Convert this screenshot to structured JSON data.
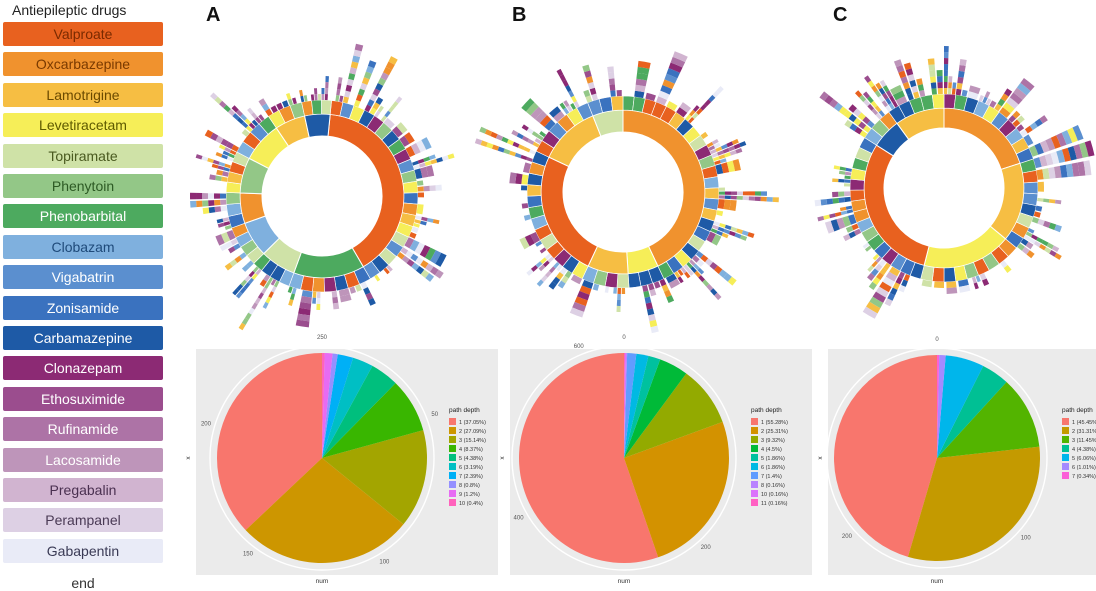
{
  "legend": {
    "title": "Antiepileptic drugs",
    "end_label": "end",
    "items": [
      {
        "name": "Valproate",
        "color": "#e8611f",
        "text": "#7a2a00"
      },
      {
        "name": "Oxcarbazepine",
        "color": "#f0922e",
        "text": "#7a3a00"
      },
      {
        "name": "Lamotrigine",
        "color": "#f6be43",
        "text": "#6b4a00"
      },
      {
        "name": "Levetiracetam",
        "color": "#f6ee58",
        "text": "#5e5a00"
      },
      {
        "name": "Topiramate",
        "color": "#cfe2a7",
        "text": "#4a5a20"
      },
      {
        "name": "Phenytoin",
        "color": "#93c787",
        "text": "#2d5a24"
      },
      {
        "name": "Phenobarbital",
        "color": "#4daa5f",
        "text": "#ffffff"
      },
      {
        "name": "Clobazam",
        "color": "#7fb0de",
        "text": "#1f4a7a"
      },
      {
        "name": "Vigabatrin",
        "color": "#5b8fcf",
        "text": "#ffffff"
      },
      {
        "name": "Zonisamide",
        "color": "#3a72bf",
        "text": "#ffffff"
      },
      {
        "name": "Carbamazepine",
        "color": "#1e5aa6",
        "text": "#ffffff"
      },
      {
        "name": "Clonazepam",
        "color": "#8c2a74",
        "text": "#ffffff"
      },
      {
        "name": "Ethosuximide",
        "color": "#9b4d8e",
        "text": "#ffffff"
      },
      {
        "name": "Rufinamide",
        "color": "#ad73a6",
        "text": "#ffffff"
      },
      {
        "name": "Lacosamide",
        "color": "#be95ba",
        "text": "#ffffff"
      },
      {
        "name": "Pregabalin",
        "color": "#d1b4d0",
        "text": "#4a3050"
      },
      {
        "name": "Perampanel",
        "color": "#ddd0e4",
        "text": "#4a3a55"
      },
      {
        "name": "Gabapentin",
        "color": "#e9ebf7",
        "text": "#3a3a55"
      }
    ]
  },
  "panels": [
    "A",
    "B",
    "C"
  ],
  "chart_data": [
    {
      "type": "pie",
      "panel": "A",
      "xlabel": "num",
      "ylabel": "x",
      "legend_title": "path depth",
      "ticks": [
        "250",
        "50",
        "100",
        "150",
        "200"
      ],
      "slices": [
        {
          "label": "1 (37.05%)",
          "value": 37.05,
          "color": "#f8766d"
        },
        {
          "label": "2 (27.09%)",
          "value": 27.09,
          "color": "#cd9600"
        },
        {
          "label": "3 (15.14%)",
          "value": 15.14,
          "color": "#a3a500"
        },
        {
          "label": "4 (8.37%)",
          "value": 8.37,
          "color": "#39b600"
        },
        {
          "label": "5 (4.38%)",
          "value": 4.38,
          "color": "#00bf7d"
        },
        {
          "label": "6 (3.19%)",
          "value": 3.19,
          "color": "#00bfc4"
        },
        {
          "label": "7 (2.39%)",
          "value": 2.39,
          "color": "#00b0f6"
        },
        {
          "label": "8 (0.8%)",
          "value": 0.8,
          "color": "#9590ff"
        },
        {
          "label": "9 (1.2%)",
          "value": 1.2,
          "color": "#e76bf3"
        },
        {
          "label": "10 (0.4%)",
          "value": 0.4,
          "color": "#ff62bc"
        }
      ]
    },
    {
      "type": "pie",
      "panel": "B",
      "xlabel": "num",
      "ylabel": "x",
      "legend_title": "path depth",
      "ticks": [
        "0",
        "600",
        "200",
        "400"
      ],
      "slices": [
        {
          "label": "1 (55.28%)",
          "value": 55.28,
          "color": "#f8766d"
        },
        {
          "label": "2 (25.31%)",
          "value": 25.31,
          "color": "#d39200"
        },
        {
          "label": "3 (9.32%)",
          "value": 9.32,
          "color": "#93aa00"
        },
        {
          "label": "4 (4.5%)",
          "value": 4.5,
          "color": "#00ba38"
        },
        {
          "label": "5 (1.86%)",
          "value": 1.86,
          "color": "#00c19f"
        },
        {
          "label": "6 (1.86%)",
          "value": 1.86,
          "color": "#00b9e3"
        },
        {
          "label": "7 (1.4%)",
          "value": 1.4,
          "color": "#619cff"
        },
        {
          "label": "8 (0.16%)",
          "value": 0.16,
          "color": "#b983ff"
        },
        {
          "label": "10 (0.16%)",
          "value": 0.16,
          "color": "#db72fb"
        },
        {
          "label": "11 (0.16%)",
          "value": 0.16,
          "color": "#ff61c3"
        }
      ]
    },
    {
      "type": "pie",
      "panel": "C",
      "xlabel": "num",
      "ylabel": "x",
      "legend_title": "path depth",
      "ticks": [
        "0",
        "200",
        "100"
      ],
      "slices": [
        {
          "label": "1 (45.45%)",
          "value": 45.45,
          "color": "#f8766d"
        },
        {
          "label": "2 (31.31%)",
          "value": 31.31,
          "color": "#c49a00"
        },
        {
          "label": "3 (11.45%)",
          "value": 11.45,
          "color": "#53b400"
        },
        {
          "label": "4 (4.38%)",
          "value": 4.38,
          "color": "#00c094"
        },
        {
          "label": "5 (6.06%)",
          "value": 6.06,
          "color": "#00b6eb"
        },
        {
          "label": "6 (1.01%)",
          "value": 1.01,
          "color": "#a58aff"
        },
        {
          "label": "7 (0.34%)",
          "value": 0.34,
          "color": "#fb61d7"
        }
      ]
    }
  ],
  "sunbursts": [
    {
      "panel": "A",
      "inner": [
        {
          "drug": "Valproate",
          "value": 40
        },
        {
          "drug": "Phenobarbital",
          "value": 14
        },
        {
          "drug": "Topiramate",
          "value": 7
        },
        {
          "drug": "Clobazam",
          "value": 7
        },
        {
          "drug": "Oxcarbazepine",
          "value": 6
        },
        {
          "drug": "Phenytoin",
          "value": 7
        },
        {
          "drug": "Levetiracetam",
          "value": 8
        },
        {
          "drug": "Lamotrigine",
          "value": 6
        },
        {
          "drug": "Carbamazepine",
          "value": 5
        }
      ]
    },
    {
      "panel": "B",
      "inner": [
        {
          "drug": "Oxcarbazepine",
          "value": 43
        },
        {
          "drug": "Levetiracetam",
          "value": 6
        },
        {
          "drug": "Lamotrigine",
          "value": 8
        },
        {
          "drug": "Valproate",
          "value": 25
        },
        {
          "drug": "Lamotrigine",
          "value": 12
        },
        {
          "drug": "Topiramate",
          "value": 6
        }
      ]
    },
    {
      "panel": "C",
      "inner": [
        {
          "drug": "Oxcarbazepine",
          "value": 20
        },
        {
          "drug": "Lamotrigine",
          "value": 16
        },
        {
          "drug": "Levetiracetam",
          "value": 18
        },
        {
          "drug": "Valproate",
          "value": 30
        },
        {
          "drug": "Carbamazepine",
          "value": 6
        },
        {
          "drug": "Lamotrigine",
          "value": 10
        }
      ]
    }
  ]
}
